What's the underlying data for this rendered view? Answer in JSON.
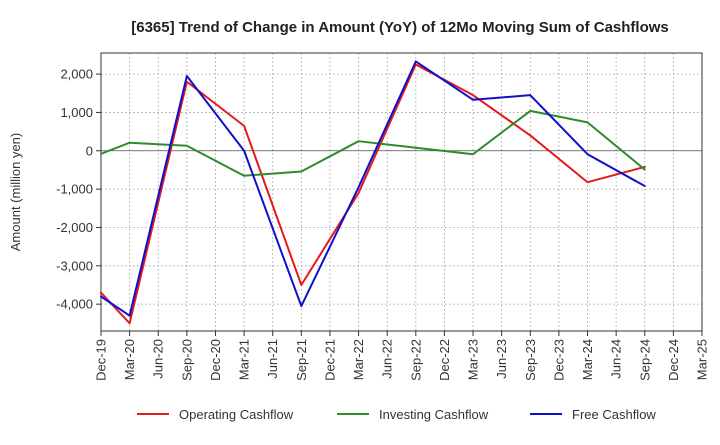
{
  "chart_data": {
    "type": "line",
    "title": "[6365]  Trend of Change in Amount (YoY) of 12Mo Moving Sum of Cashflows",
    "xlabel": "",
    "ylabel": "Amount (million yen)",
    "ylim": [
      -4700,
      2550
    ],
    "yticks": [
      2000,
      1000,
      0,
      -1000,
      -2000,
      -3000,
      -4000
    ],
    "ytick_labels": [
      "2,000",
      "1,000",
      "0",
      "-1,000",
      "-2,000",
      "-3,000",
      "-4,000"
    ],
    "categories": [
      "Dec-19",
      "Mar-20",
      "Jun-20",
      "Sep-20",
      "Dec-20",
      "Mar-21",
      "Jun-21",
      "Sep-21",
      "Dec-21",
      "Mar-22",
      "Jun-22",
      "Sep-22",
      "Dec-22",
      "Mar-23",
      "Jun-23",
      "Sep-23",
      "Dec-23",
      "Mar-24",
      "Jun-24",
      "Sep-24",
      "Dec-24",
      "Mar-25"
    ],
    "grid": true,
    "legend_position": "bottom",
    "series": [
      {
        "name": "Operating Cashflow",
        "color": "#e41a1c",
        "values": [
          -3700,
          -4500,
          null,
          1800,
          null,
          650,
          null,
          -3500,
          null,
          -1100,
          null,
          2250,
          null,
          1450,
          null,
          400,
          null,
          -820,
          null,
          -420,
          null,
          null
        ]
      },
      {
        "name": "Investing Cashflow",
        "color": "#2e8b2e",
        "values": [
          -80,
          210,
          null,
          130,
          null,
          -650,
          null,
          -540,
          null,
          250,
          null,
          80,
          null,
          -90,
          null,
          1040,
          null,
          740,
          null,
          -490,
          null,
          null
        ]
      },
      {
        "name": "Free Cashflow",
        "color": "#1010cc",
        "values": [
          -3800,
          -4300,
          null,
          1950,
          null,
          0,
          null,
          -4050,
          null,
          -950,
          null,
          2330,
          null,
          1330,
          null,
          1450,
          null,
          -90,
          null,
          -920,
          null,
          null
        ]
      }
    ]
  }
}
